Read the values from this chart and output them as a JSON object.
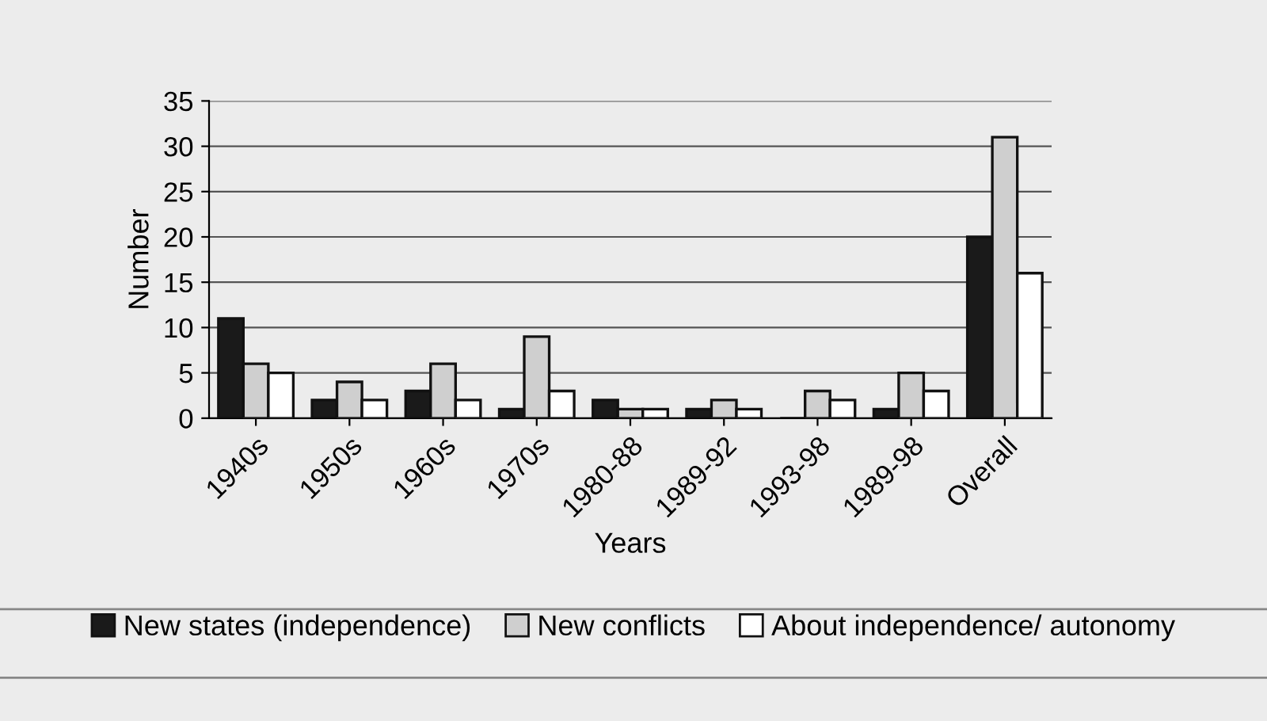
{
  "chart_data": {
    "type": "bar",
    "xlabel": "Years",
    "ylabel": "Number",
    "categories": [
      "1940s",
      "1950s",
      "1960s",
      "1970s",
      "1980-88",
      "1989-92",
      "1993-98",
      "1989-98",
      "Overall"
    ],
    "series": [
      {
        "name": "New states (independence)",
        "color": "#1a1a1a",
        "values": [
          11,
          2,
          3,
          1,
          2,
          1,
          0,
          1,
          20
        ]
      },
      {
        "name": "New conflicts",
        "color": "#cfcfcf",
        "values": [
          6,
          4,
          6,
          9,
          1,
          2,
          3,
          5,
          31
        ]
      },
      {
        "name": "About independence/ autonomy",
        "color": "#ffffff",
        "values": [
          5,
          2,
          2,
          3,
          1,
          1,
          2,
          3,
          16
        ]
      }
    ],
    "ylim": [
      0,
      35
    ],
    "yticks": [
      0,
      5,
      10,
      15,
      20,
      25,
      30,
      35
    ],
    "grid": "y",
    "legend": "bottom"
  }
}
